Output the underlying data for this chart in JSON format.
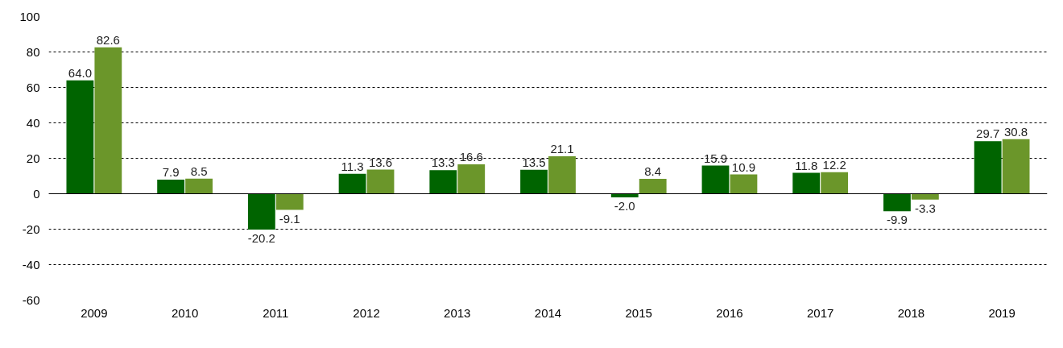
{
  "chart_data": {
    "type": "bar",
    "categories": [
      "2009",
      "2010",
      "2011",
      "2012",
      "2013",
      "2014",
      "2015",
      "2016",
      "2017",
      "2018",
      "2019"
    ],
    "series": [
      {
        "color": "#006400",
        "values": [
          64.0,
          7.9,
          -20.2,
          11.3,
          13.3,
          13.5,
          -2.0,
          15.9,
          11.8,
          -9.9,
          29.7
        ],
        "value_labels": [
          "64.0",
          "7.9",
          "-20.2",
          "11.3",
          "13.3",
          "13.5",
          "-2.0",
          "15.9",
          "11.8",
          "-9.9",
          "29.7"
        ]
      },
      {
        "color": "#6b962a",
        "values": [
          82.6,
          8.5,
          -9.1,
          13.6,
          16.6,
          21.1,
          8.4,
          10.9,
          12.2,
          -3.3,
          30.8
        ],
        "value_labels": [
          "82.6",
          "8.5",
          "-9.1",
          "13.6",
          "16.6",
          "21.1",
          "8.4",
          "10.9",
          "12.2",
          "-3.3",
          "30.8"
        ]
      }
    ],
    "ylim": [
      -60,
      100
    ],
    "yticks": [
      -60,
      -40,
      -20,
      0,
      20,
      40,
      60,
      80,
      100
    ],
    "grid": "y",
    "ref_lines": [
      {
        "axis": "y",
        "value": 0,
        "line_style": "solid"
      }
    ]
  }
}
